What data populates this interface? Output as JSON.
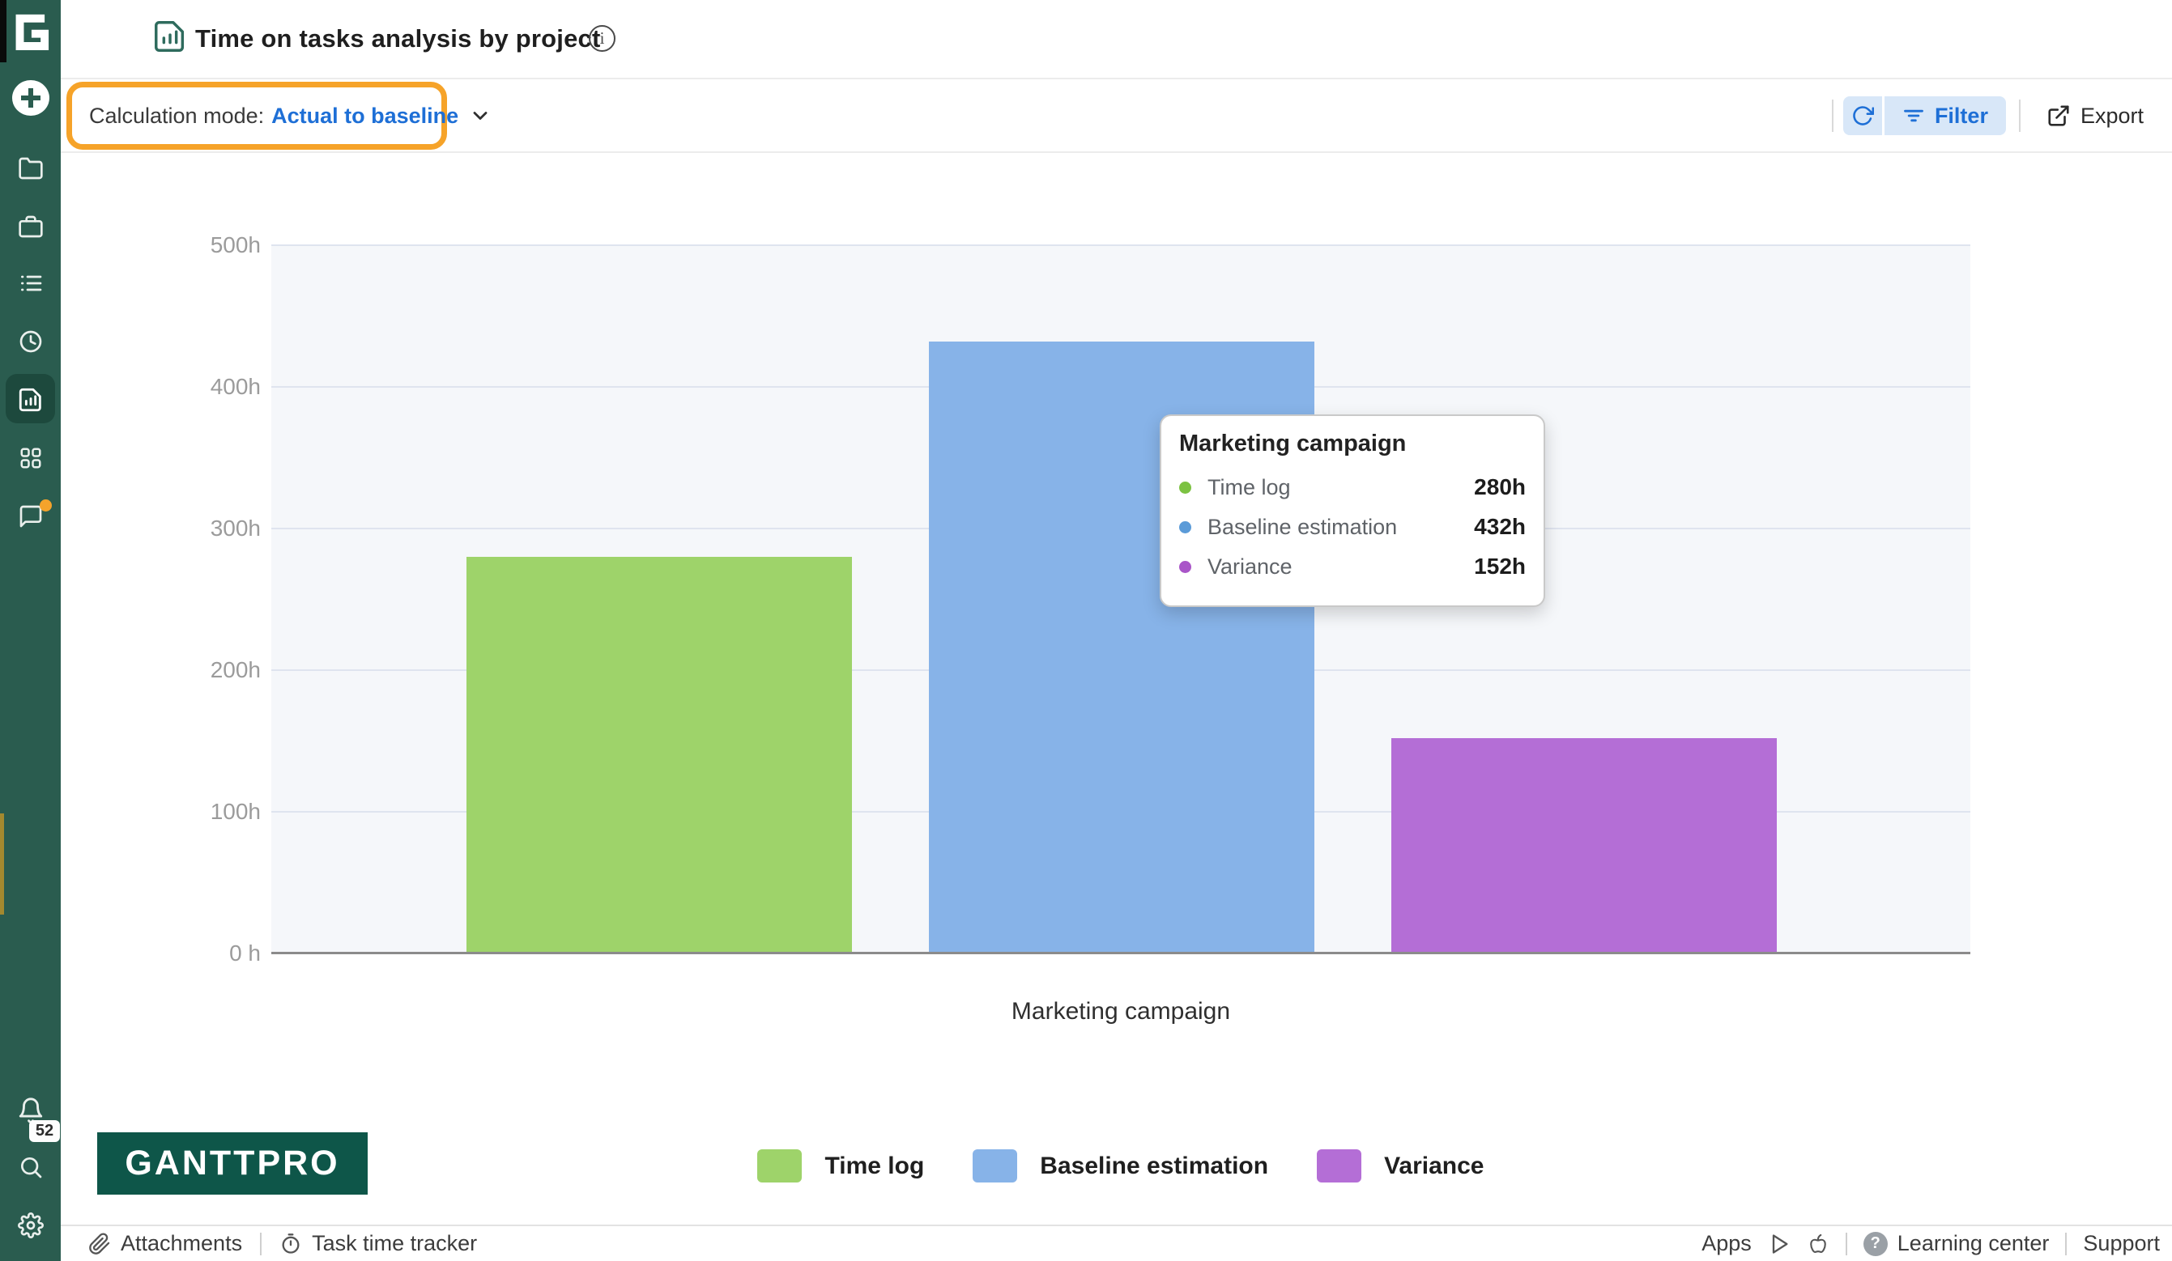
{
  "header": {
    "title": "Time on tasks analysis by project"
  },
  "toolbar": {
    "calc_mode_label": "Calculation mode:",
    "calc_mode_value": "Actual to baseline",
    "filter_label": "Filter",
    "export_label": "Export"
  },
  "sidebar": {
    "icons": [
      "ganttpro-logo",
      "add",
      "folder",
      "briefcase",
      "task-list",
      "time-log",
      "reports",
      "integrations",
      "chat",
      "notifications",
      "search",
      "settings"
    ],
    "notification_badge": "52"
  },
  "chart_data": {
    "type": "bar",
    "title": "Time on tasks analysis by project",
    "categories": [
      "Marketing campaign"
    ],
    "series": [
      {
        "name": "Time log",
        "value": 280,
        "value_label": "280h",
        "color": "#9ed36a",
        "dot_color": "#7cc242"
      },
      {
        "name": "Baseline estimation",
        "value": 432,
        "value_label": "432h",
        "color": "#87b3e8",
        "dot_color": "#5b9bd8"
      },
      {
        "name": "Variance",
        "value": 152,
        "value_label": "152h",
        "color": "#b46ed6",
        "dot_color": "#a955c8"
      }
    ],
    "xlabel": "Marketing campaign",
    "ylabel": "hours",
    "y_ticks": [
      "500h",
      "400h",
      "300h",
      "200h",
      "100h",
      "0 h"
    ],
    "ylim": [
      0,
      500
    ],
    "grid": true,
    "legend_position": "bottom",
    "plot_bg": "#f5f7fa"
  },
  "tooltip": {
    "title": "Marketing campaign"
  },
  "brand": {
    "logo_text": "GANTTPRO"
  },
  "footer": {
    "attachments": "Attachments",
    "task_time_tracker": "Task time tracker",
    "apps": "Apps",
    "learning_center": "Learning center",
    "support": "Support"
  },
  "colors": {
    "sidebar_green": "#2a5c4f",
    "accent_blue": "#1e6fd6",
    "button_blue_bg": "#d8e7f8",
    "highlight_orange": "#f6a329",
    "logo_green": "#0e5649",
    "plot_background": "#f5f7fa",
    "gridline": "#dfe4ef"
  }
}
